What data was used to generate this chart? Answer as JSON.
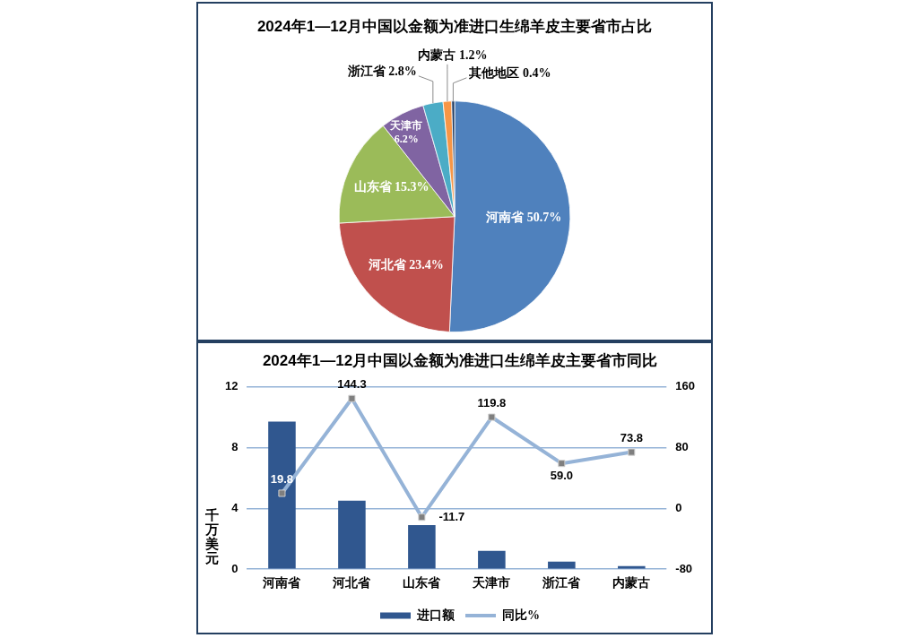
{
  "chart_data": [
    {
      "type": "pie",
      "title": "2024年1—12月中国以金额为准进口生绵羊皮主要省市占比",
      "categories": [
        "河南省",
        "河北省",
        "山东省",
        "天津市",
        "浙江省",
        "内蒙古",
        "其他地区"
      ],
      "values": [
        50.7,
        23.4,
        15.3,
        6.2,
        2.8,
        1.2,
        0.4
      ],
      "colors": [
        "#4f81bd",
        "#c0504d",
        "#9bbb59",
        "#8064a2",
        "#4bacc6",
        "#f79646",
        "#1f3b63"
      ],
      "value_labels": [
        "50.7%",
        "23.4%",
        "15.3%",
        "6.2%",
        "2.8%",
        "1.2%",
        "0.4%"
      ]
    },
    {
      "type": "bar",
      "title": "2024年1—12月中国以金额为准进口生绵羊皮主要省市同比",
      "categories": [
        "河南省",
        "河北省",
        "山东省",
        "天津市",
        "浙江省",
        "内蒙古"
      ],
      "ylabel": "千万美元",
      "ylim": [
        0,
        12
      ],
      "yticks": [
        0,
        4,
        8,
        12
      ],
      "y2lim": [
        -80,
        160
      ],
      "y2ticks": [
        -80,
        0,
        80,
        160
      ],
      "grid": "y",
      "legend": "bottom",
      "marker": "square",
      "series": [
        {
          "name": "进口额",
          "type": "bar",
          "color": "#30578f",
          "values": [
            9.7,
            4.5,
            2.9,
            1.2,
            0.5,
            0.2
          ]
        },
        {
          "name": "同比%",
          "type": "line",
          "axis": "y2",
          "color": "#95b3d7",
          "values": [
            19.8,
            144.3,
            -11.7,
            119.8,
            59.0,
            73.8
          ],
          "value_labels": [
            "19.8",
            "144.3",
            "-11.7",
            "119.8",
            "59.0",
            "73.8"
          ]
        }
      ]
    }
  ]
}
